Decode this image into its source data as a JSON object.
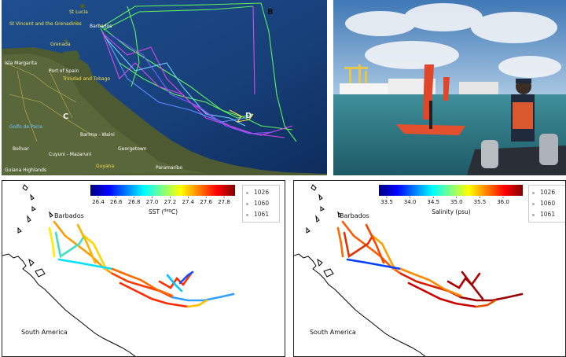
{
  "satellite_map": {
    "places": [
      {
        "label": "St Lucia"
      },
      {
        "label": "St Vincent and the Grenadines"
      },
      {
        "label": "Barbados"
      },
      {
        "label": "Grenada"
      },
      {
        "label": "Port of Spain"
      },
      {
        "label": "Trinidad and Tobago"
      },
      {
        "label": "Isla Margarita"
      },
      {
        "label": "Barima - Waini"
      },
      {
        "label": "Bolívar"
      },
      {
        "label": "Cuyuni - Mazaruni"
      },
      {
        "label": "Georgetown"
      },
      {
        "label": "Guyana"
      },
      {
        "label": "Paramaribo"
      },
      {
        "label": "Golfo de Paria"
      },
      {
        "label": "Guiana Highlands"
      }
    ],
    "markers": [
      "B",
      "C",
      "D"
    ]
  },
  "sst_map": {
    "colorbar_title": "SST (",
    "colorbar_unit": "deg",
    "colorbar_unit_end": "C)",
    "ticks": [
      "26.4",
      "26.6",
      "26.8",
      "27.0",
      "27.2",
      "27.4",
      "27.6",
      "27.8"
    ],
    "legend": [
      "1026",
      "1060",
      "1061"
    ],
    "labels": {
      "barbados": "Barbados",
      "south_america": "South America"
    }
  },
  "salinity_map": {
    "colorbar_title": "Salinity (psu)",
    "ticks": [
      "33.5",
      "34.0",
      "34.5",
      "35.0",
      "35.5",
      "36.0"
    ],
    "legend": [
      "1026",
      "1060",
      "1061"
    ],
    "labels": {
      "barbados": "Barbados",
      "south_america": "South America"
    }
  }
}
